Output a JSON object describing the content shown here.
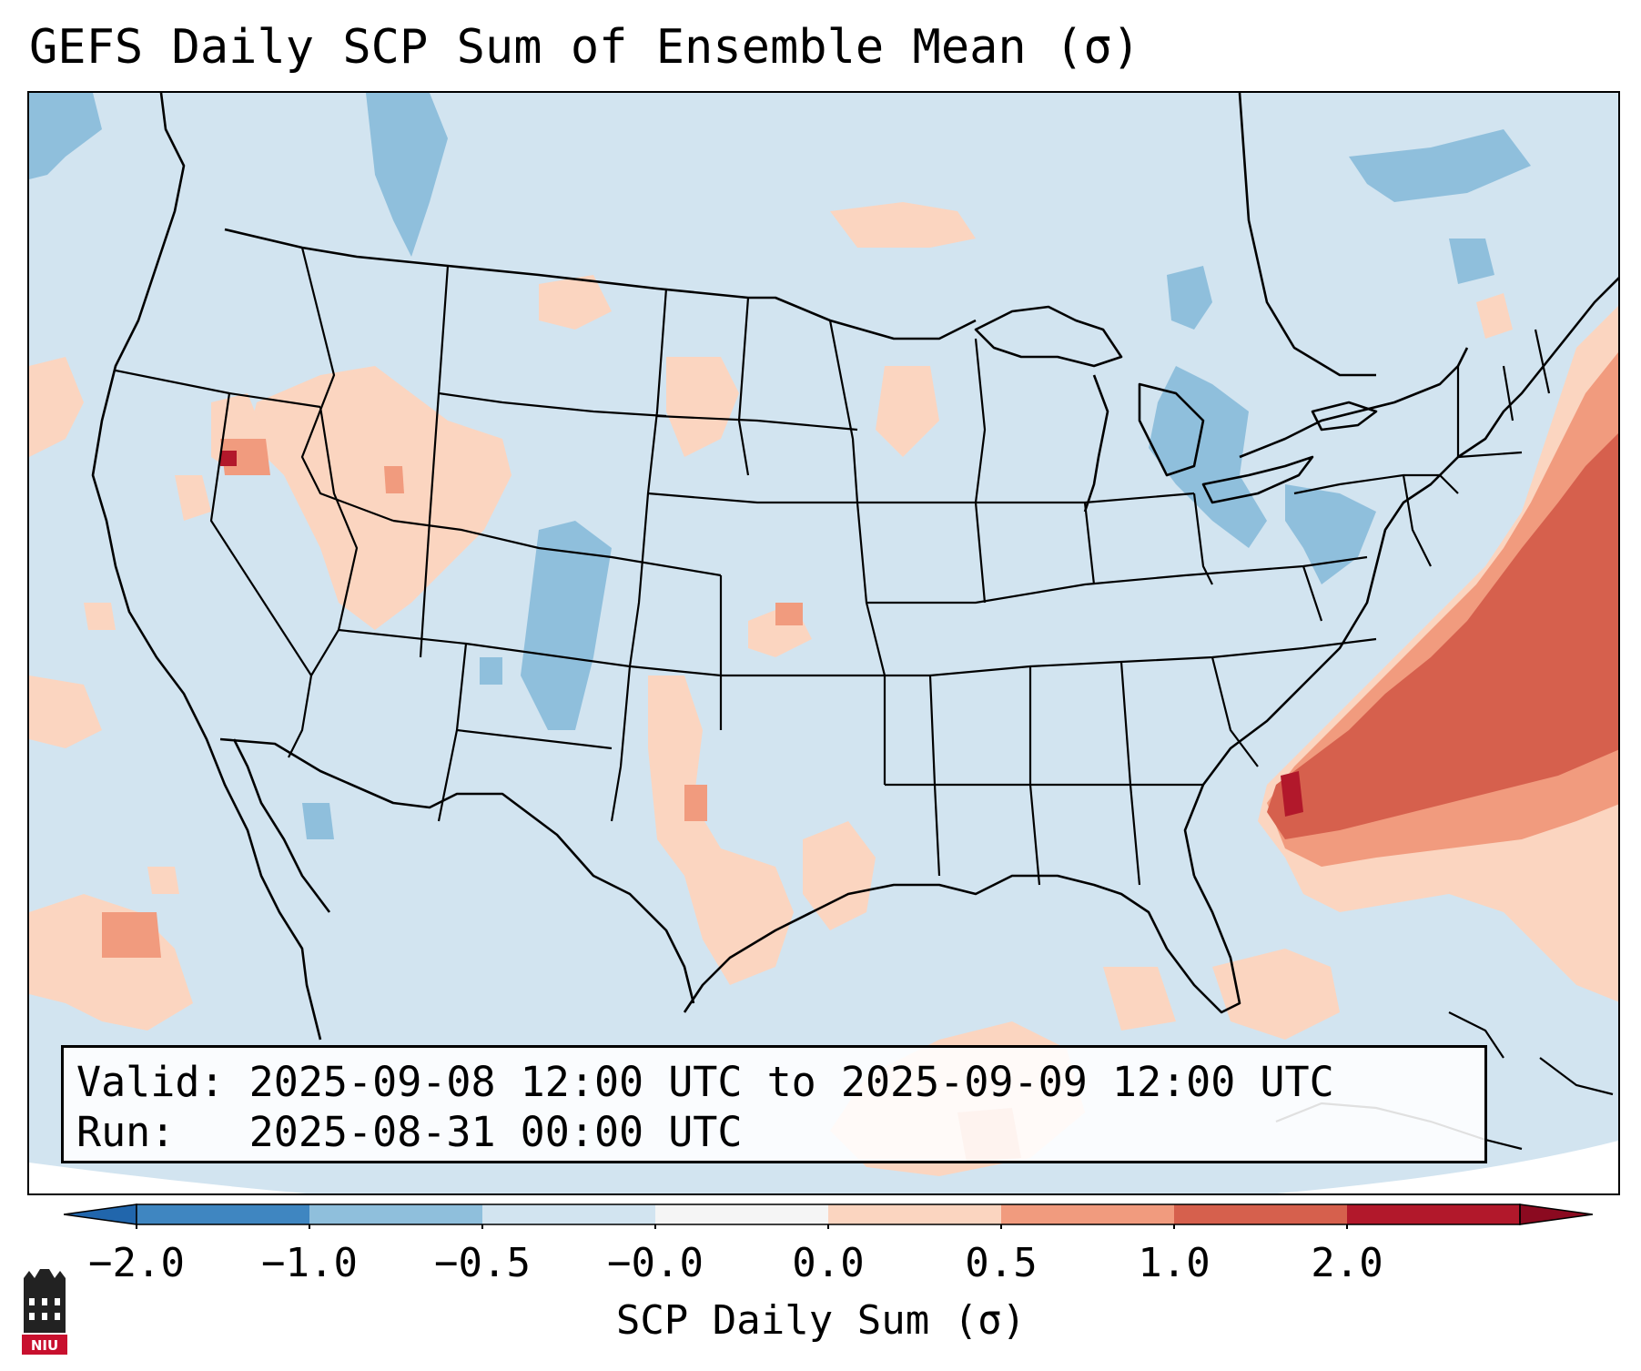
{
  "title": "GEFS Daily SCP Sum of Ensemble Mean (σ)",
  "info": {
    "valid_line": "Valid: 2025-09-08 12:00 UTC to 2025-09-09 12:00 UTC",
    "run_line": "Run:   2025-08-31 00:00 UTC"
  },
  "colorbar": {
    "label": "SCP Daily Sum (σ)",
    "ticks": [
      "−2.0",
      "−1.0",
      "−0.5",
      "−0.0",
      "0.0",
      "0.5",
      "1.0",
      "2.0"
    ],
    "colors": [
      "#3f86c1",
      "#8fbfdc",
      "#d2e4f0",
      "#f5f5f5",
      "#fbd5c0",
      "#f19b7e",
      "#d6604d",
      "#b2182b"
    ],
    "extend": "both"
  },
  "map": {
    "region": "Contiguous United States",
    "ocean_color": "#d2e4f0",
    "border_color": "#000000"
  },
  "logo": {
    "text": "NIU",
    "icon": "niu-building-icon"
  }
}
